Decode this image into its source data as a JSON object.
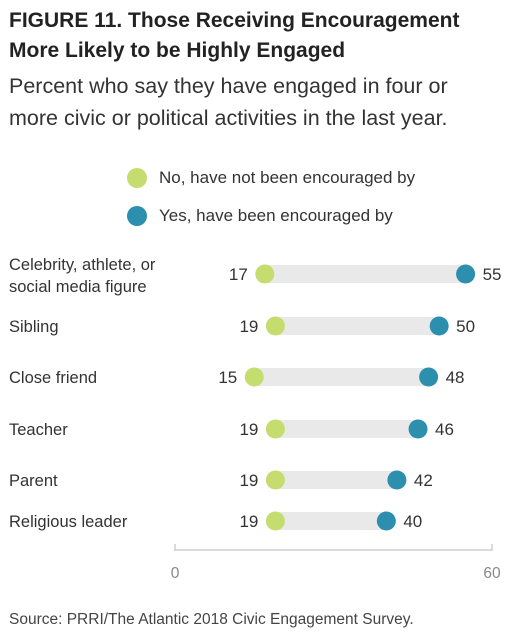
{
  "title_line1": "FIGURE 11.  Those Receiving Encouragement",
  "title_line2": "More Likely to be Highly Engaged",
  "subtitle_line1": "Percent who say they have engaged in four or",
  "subtitle_line2": "more civic or political activities in the last year.",
  "legend": [
    {
      "label": "No, have not been encouraged by",
      "color": "#c5dc6e"
    },
    {
      "label": "Yes, have been encouraged by",
      "color": "#2d8fae"
    }
  ],
  "source": "Source: PRRI/The Atlantic 2018 Civic Engagement Survey.",
  "colors": {
    "no": "#c5dc6e",
    "yes": "#2d8fae",
    "track": "#e9e9e9",
    "axis": "#cfcfcf"
  },
  "chart_data": {
    "type": "dot-plot",
    "categories": [
      [
        "Celebrity, athlete, or",
        "social media figure"
      ],
      [
        "Sibling"
      ],
      [
        "Close friend"
      ],
      [
        "Teacher"
      ],
      [
        "Parent"
      ],
      [
        "Religious leader"
      ]
    ],
    "series": [
      {
        "name": "No, have not been encouraged by",
        "values": [
          17,
          19,
          15,
          19,
          19,
          19
        ]
      },
      {
        "name": "Yes, have been encouraged by",
        "values": [
          55,
          50,
          48,
          46,
          42,
          40
        ]
      }
    ],
    "xlim": [
      0,
      60
    ],
    "xticks": [
      "0",
      "60"
    ],
    "grid": false,
    "legend_position": "top"
  }
}
